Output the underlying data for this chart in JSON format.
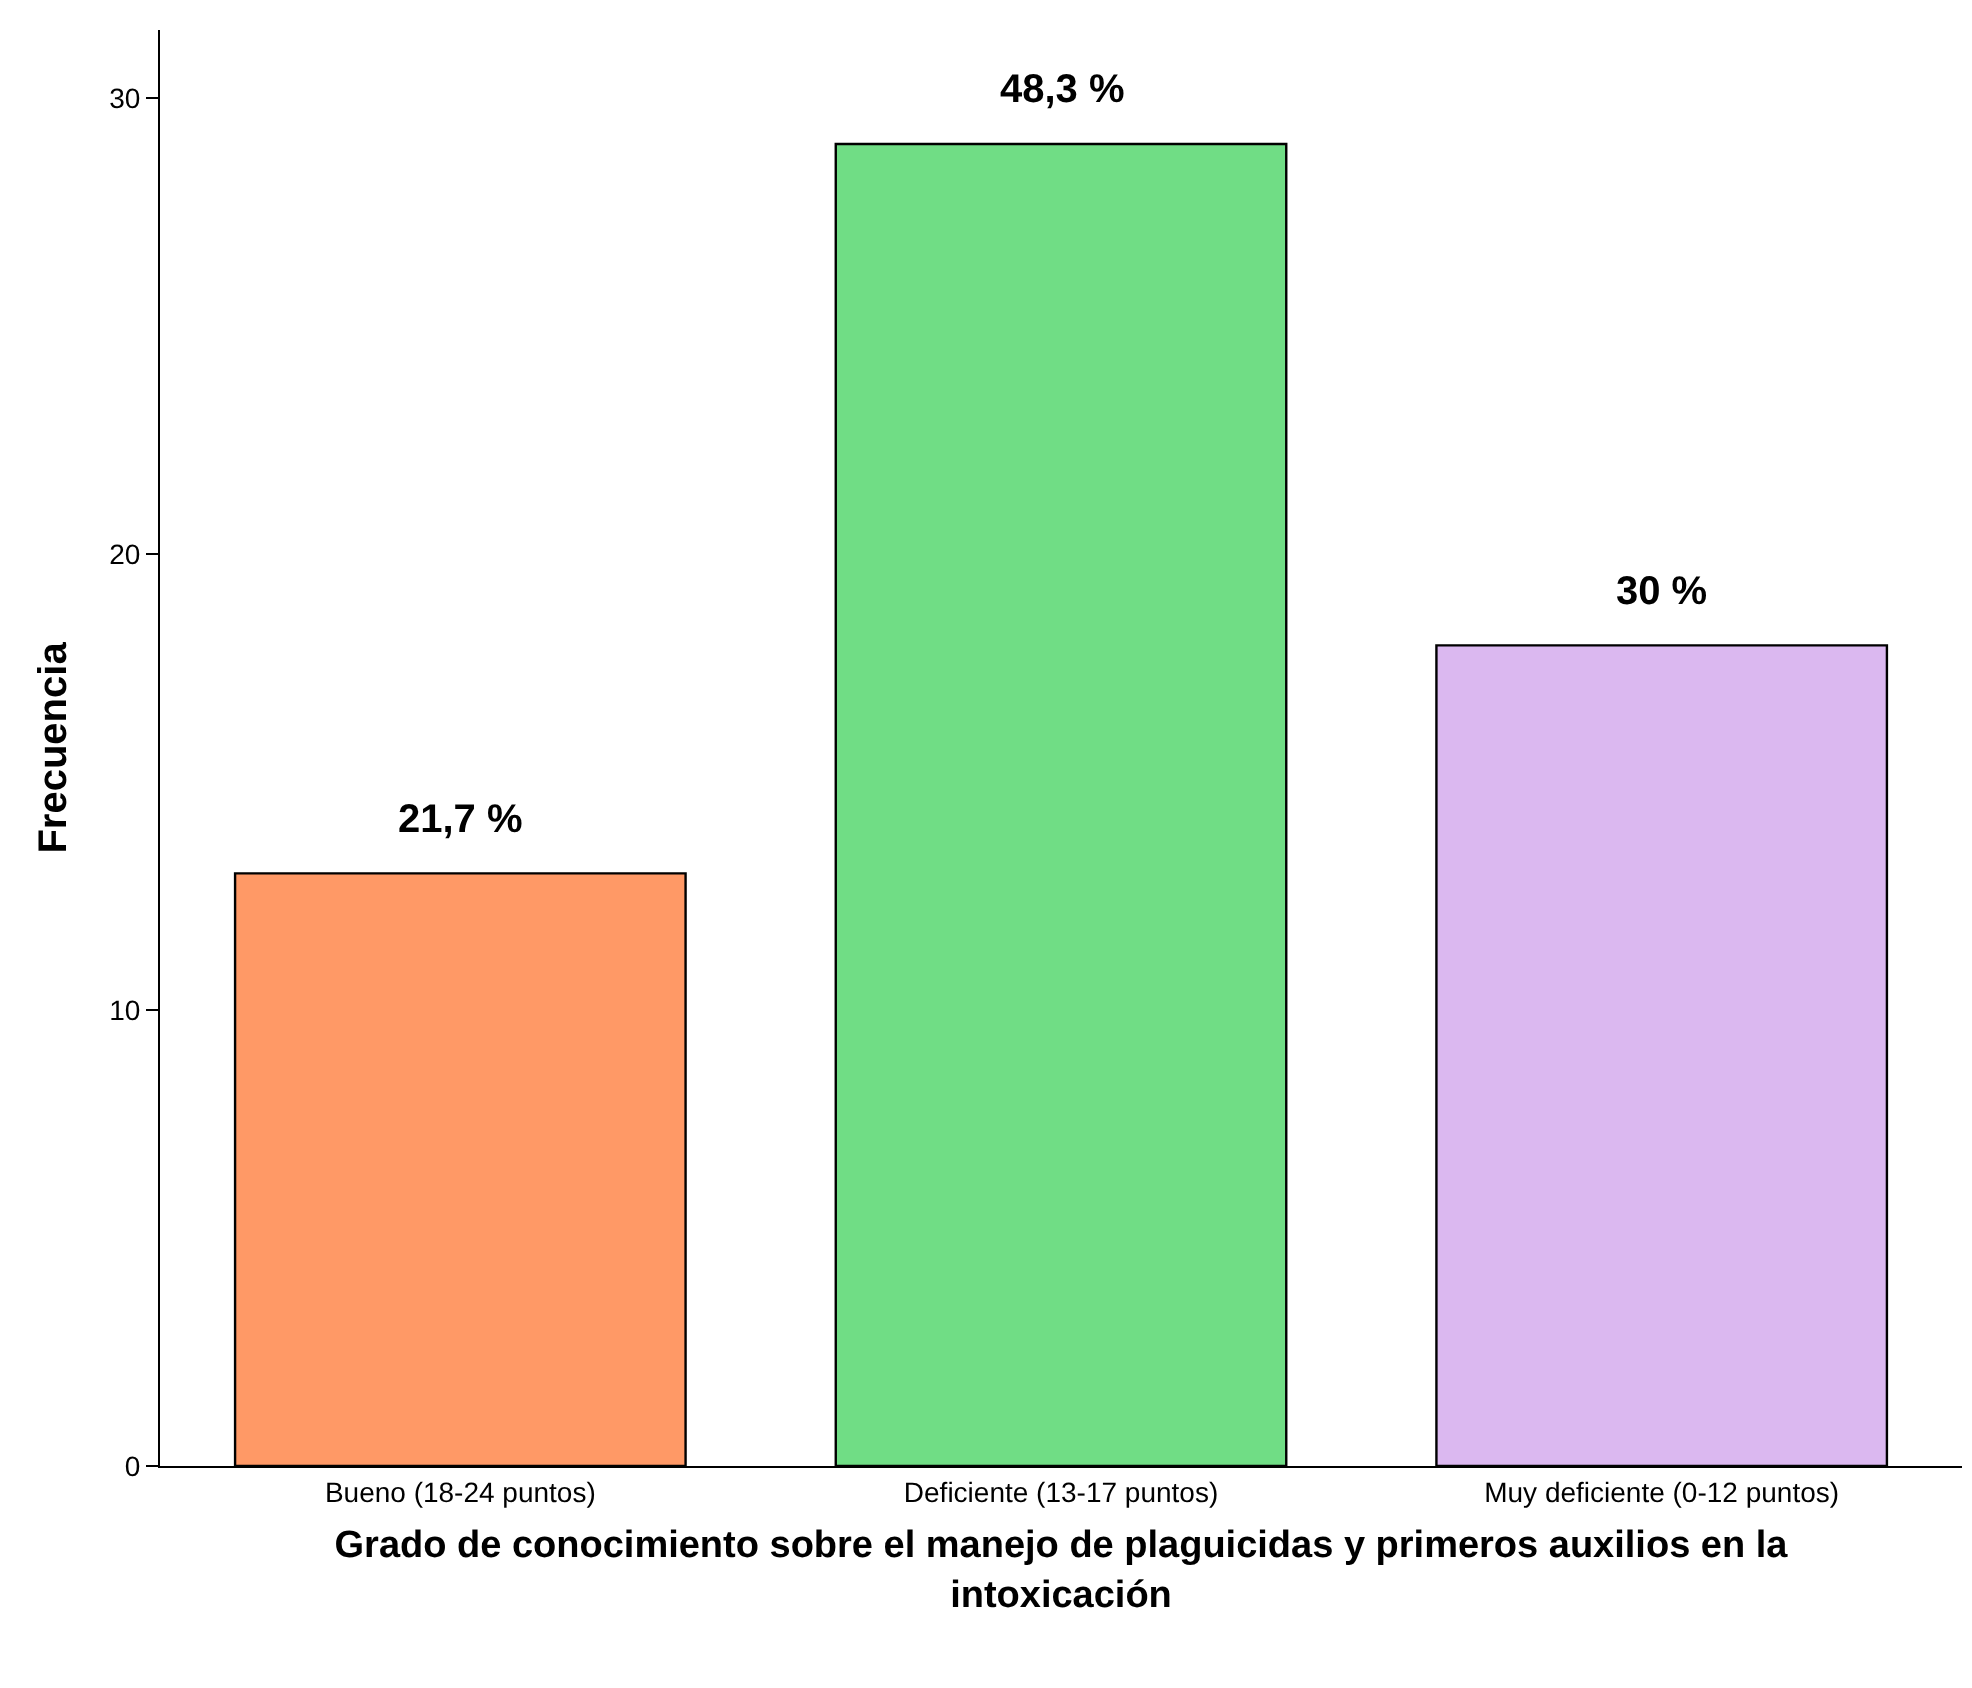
{
  "chart_data": {
    "type": "bar",
    "xlabel": "Grado de conocimiento sobre el manejo de plaguicidas y primeros auxilios en la intoxicación",
    "ylabel": "Frecuencia",
    "categories": [
      "Bueno (18-24 puntos)",
      "Deficiente (13-17 puntos)",
      "Muy deficiente (0-12 puntos)"
    ],
    "values": [
      13,
      29,
      18
    ],
    "colors": [
      "#ff9966",
      "#70dd85",
      "#dbb8f0"
    ],
    "annotations": [
      {
        "text": "21,7 %",
        "x": "Bueno (18-24 puntos)",
        "y": 13
      },
      {
        "text": "48,3 %",
        "x": "Deficiente (13-17 puntos)",
        "y": 29
      },
      {
        "text": "30 %",
        "x": "Muy deficiente (0-12 puntos)",
        "y": 18
      }
    ],
    "ylim": [
      0,
      31.5
    ],
    "yticks": [
      0,
      10,
      20,
      30
    ]
  }
}
